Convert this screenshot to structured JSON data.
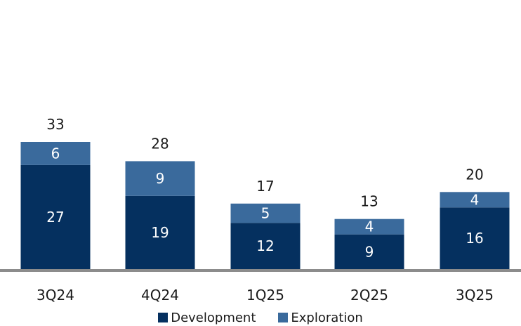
{
  "chart_data": {
    "type": "bar",
    "stacked": true,
    "categories": [
      "3Q24",
      "4Q24",
      "1Q25",
      "2Q25",
      "3Q25"
    ],
    "series": [
      {
        "name": "Development",
        "values": [
          27,
          19,
          12,
          9,
          16
        ],
        "color": "#05305f"
      },
      {
        "name": "Exploration",
        "values": [
          6,
          9,
          5,
          4,
          4
        ],
        "color": "#3a6a9c"
      }
    ],
    "totals": [
      "33",
      "28",
      "17",
      "13",
      "20"
    ],
    "legend_position": "bottom",
    "grid": false,
    "ylim": [
      0,
      33
    ]
  },
  "colors": {
    "axis": "#8c8c8c",
    "segment_label": "#ffffff",
    "total_label": "#1a1a1a"
  }
}
